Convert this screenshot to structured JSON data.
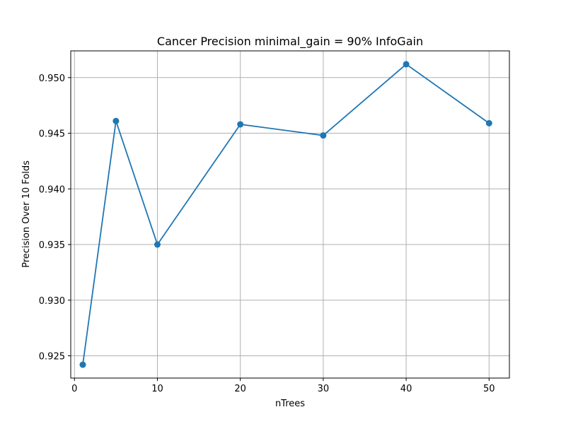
{
  "chart_data": {
    "type": "line",
    "title": "Cancer Precision minimal_gain = 90% InfoGain",
    "xlabel": "nTrees",
    "ylabel": "Precision Over 10 Folds",
    "x": [
      1,
      5,
      10,
      20,
      30,
      40,
      50
    ],
    "series": [
      {
        "values": [
          0.9242,
          0.9461,
          0.935,
          0.9458,
          0.9448,
          0.9512,
          0.9459
        ]
      }
    ],
    "xlim": [
      -0.45,
      52.45
    ],
    "ylim": [
      0.923,
      0.9524
    ],
    "xticks": [
      0,
      10,
      20,
      30,
      40,
      50
    ],
    "xtick_labels": [
      "0",
      "10",
      "20",
      "30",
      "40",
      "50"
    ],
    "yticks": [
      0.925,
      0.93,
      0.935,
      0.94,
      0.945,
      0.95
    ],
    "ytick_labels": [
      "0.925",
      "0.930",
      "0.935",
      "0.940",
      "0.945",
      "0.950"
    ],
    "grid": true,
    "line_color": "#1f77b4",
    "marker": "circle"
  }
}
